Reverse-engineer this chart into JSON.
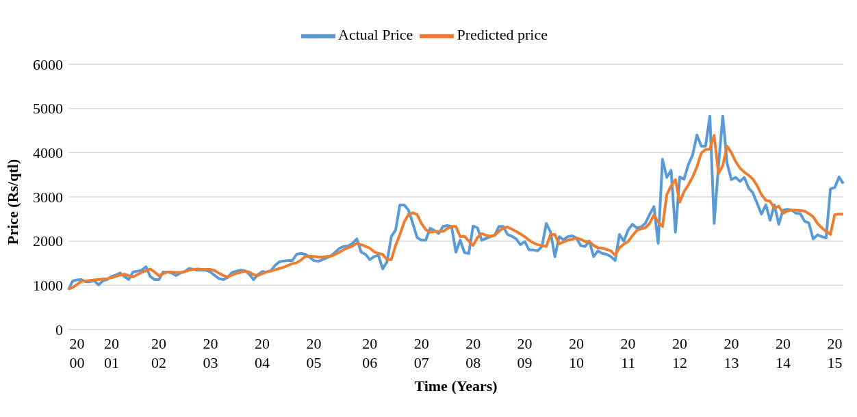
{
  "chart_data": {
    "type": "line",
    "xlabel": "Time (Years)",
    "ylabel": "Price (Rs/qtl)",
    "categories": [
      null,
      null,
      "2000",
      null,
      null,
      null,
      null,
      null,
      null,
      null,
      "2001",
      null,
      null,
      null,
      null,
      null,
      null,
      null,
      null,
      null,
      null,
      "2002",
      null,
      null,
      null,
      null,
      null,
      null,
      null,
      null,
      null,
      null,
      null,
      "2003",
      null,
      null,
      null,
      null,
      null,
      null,
      null,
      null,
      null,
      null,
      null,
      "2004",
      null,
      null,
      null,
      null,
      null,
      null,
      null,
      null,
      null,
      null,
      null,
      "2005",
      null,
      null,
      null,
      null,
      null,
      null,
      null,
      null,
      null,
      null,
      null,
      null,
      "2006",
      null,
      null,
      null,
      null,
      null,
      null,
      null,
      null,
      null,
      null,
      null,
      "2007",
      null,
      null,
      null,
      null,
      null,
      null,
      null,
      null,
      null,
      null,
      null,
      "2008",
      null,
      null,
      null,
      null,
      null,
      null,
      null,
      null,
      null,
      null,
      null,
      "2009",
      null,
      null,
      null,
      null,
      null,
      null,
      null,
      null,
      null,
      null,
      null,
      "2010",
      null,
      null,
      null,
      null,
      null,
      null,
      null,
      null,
      null,
      null,
      null,
      "2011",
      null,
      null,
      null,
      null,
      null,
      null,
      null,
      null,
      null,
      null,
      null,
      "2012",
      null,
      null,
      null,
      null,
      null,
      null,
      null,
      null,
      null,
      null,
      null,
      "2013",
      null,
      null,
      null,
      null,
      null,
      null,
      null,
      null,
      null,
      null,
      null,
      "2014",
      null,
      null,
      null,
      null,
      null,
      null,
      null,
      null,
      null,
      null,
      null,
      "2015",
      null,
      null
    ],
    "series": [
      {
        "name": "Actual Price",
        "color": "#5b9bd5",
        "values": [
          900,
          1100,
          1120,
          1130,
          1080,
          1080,
          1100,
          1010,
          1100,
          1130,
          1200,
          1230,
          1280,
          1200,
          1130,
          1300,
          1320,
          1340,
          1420,
          1200,
          1130,
          1130,
          1300,
          1300,
          1280,
          1220,
          1280,
          1310,
          1380,
          1360,
          1340,
          1340,
          1340,
          1300,
          1220,
          1150,
          1130,
          1180,
          1290,
          1320,
          1340,
          1330,
          1250,
          1130,
          1240,
          1310,
          1300,
          1330,
          1450,
          1530,
          1550,
          1560,
          1560,
          1700,
          1720,
          1700,
          1640,
          1560,
          1540,
          1580,
          1620,
          1670,
          1750,
          1840,
          1880,
          1890,
          1950,
          2050,
          1750,
          1700,
          1580,
          1650,
          1680,
          1370,
          1530,
          2100,
          2250,
          2820,
          2820,
          2700,
          2400,
          2080,
          2020,
          2020,
          2290,
          2240,
          2170,
          2330,
          2350,
          2330,
          1750,
          2020,
          1740,
          1720,
          2340,
          2300,
          2020,
          2060,
          2100,
          2130,
          2330,
          2330,
          2150,
          2110,
          2050,
          1920,
          1990,
          1800,
          1800,
          1780,
          1880,
          2400,
          2200,
          1650,
          2100,
          2030,
          2100,
          2120,
          2070,
          1900,
          1880,
          2000,
          1650,
          1780,
          1720,
          1700,
          1650,
          1560,
          2150,
          2000,
          2250,
          2380,
          2300,
          2320,
          2400,
          2600,
          2780,
          1950,
          3850,
          3440,
          3600,
          2200,
          3450,
          3400,
          3730,
          3950,
          4400,
          4150,
          4150,
          4830,
          2400,
          3700,
          4830,
          3760,
          3390,
          3440,
          3350,
          3440,
          3200,
          3090,
          2850,
          2610,
          2820,
          2470,
          2820,
          2380,
          2700,
          2720,
          2700,
          2630,
          2620,
          2450,
          2410,
          2050,
          2140,
          2100,
          2070,
          3180,
          3210,
          3450,
          3300
        ]
      },
      {
        "name": "Predicted price",
        "color": "#ed7d31",
        "values": [
          920,
          950,
          1020,
          1090,
          1100,
          1110,
          1120,
          1130,
          1140,
          1150,
          1170,
          1200,
          1230,
          1250,
          1220,
          1190,
          1240,
          1290,
          1330,
          1370,
          1300,
          1220,
          1260,
          1300,
          1300,
          1290,
          1290,
          1310,
          1340,
          1360,
          1370,
          1360,
          1360,
          1360,
          1330,
          1270,
          1220,
          1190,
          1230,
          1270,
          1290,
          1320,
          1300,
          1240,
          1220,
          1260,
          1300,
          1320,
          1350,
          1380,
          1410,
          1450,
          1490,
          1510,
          1570,
          1650,
          1660,
          1650,
          1640,
          1640,
          1650,
          1660,
          1700,
          1750,
          1810,
          1850,
          1890,
          1950,
          1920,
          1880,
          1840,
          1760,
          1720,
          1700,
          1580,
          1580,
          1900,
          2150,
          2430,
          2600,
          2640,
          2600,
          2400,
          2260,
          2200,
          2220,
          2220,
          2220,
          2280,
          2330,
          2330,
          2100,
          2110,
          2000,
          1900,
          2080,
          2170,
          2130,
          2110,
          2130,
          2220,
          2300,
          2320,
          2270,
          2220,
          2160,
          2100,
          2020,
          1960,
          1920,
          1900,
          1880,
          2150,
          2150,
          1940,
          1980,
          2020,
          2040,
          2070,
          2040,
          1990,
          1990,
          1900,
          1850,
          1840,
          1810,
          1780,
          1680,
          1850,
          1930,
          1990,
          2120,
          2240,
          2280,
          2300,
          2400,
          2590,
          2430,
          2330,
          3050,
          3250,
          3390,
          2880,
          3120,
          3270,
          3450,
          3680,
          3990,
          4070,
          4080,
          4390,
          3530,
          3710,
          4150,
          4000,
          3800,
          3650,
          3560,
          3490,
          3400,
          3250,
          3050,
          2920,
          2900,
          2740,
          2790,
          2630,
          2680,
          2700,
          2700,
          2690,
          2680,
          2620,
          2550,
          2400,
          2300,
          2220,
          2150,
          2600,
          2610,
          2610
        ]
      }
    ],
    "ylim": [
      0,
      6000
    ],
    "yticks": [
      0,
      1000,
      2000,
      3000,
      4000,
      5000,
      6000
    ],
    "grid": "y",
    "legend": "top",
    "marker": "none",
    "line_style": "solid"
  }
}
